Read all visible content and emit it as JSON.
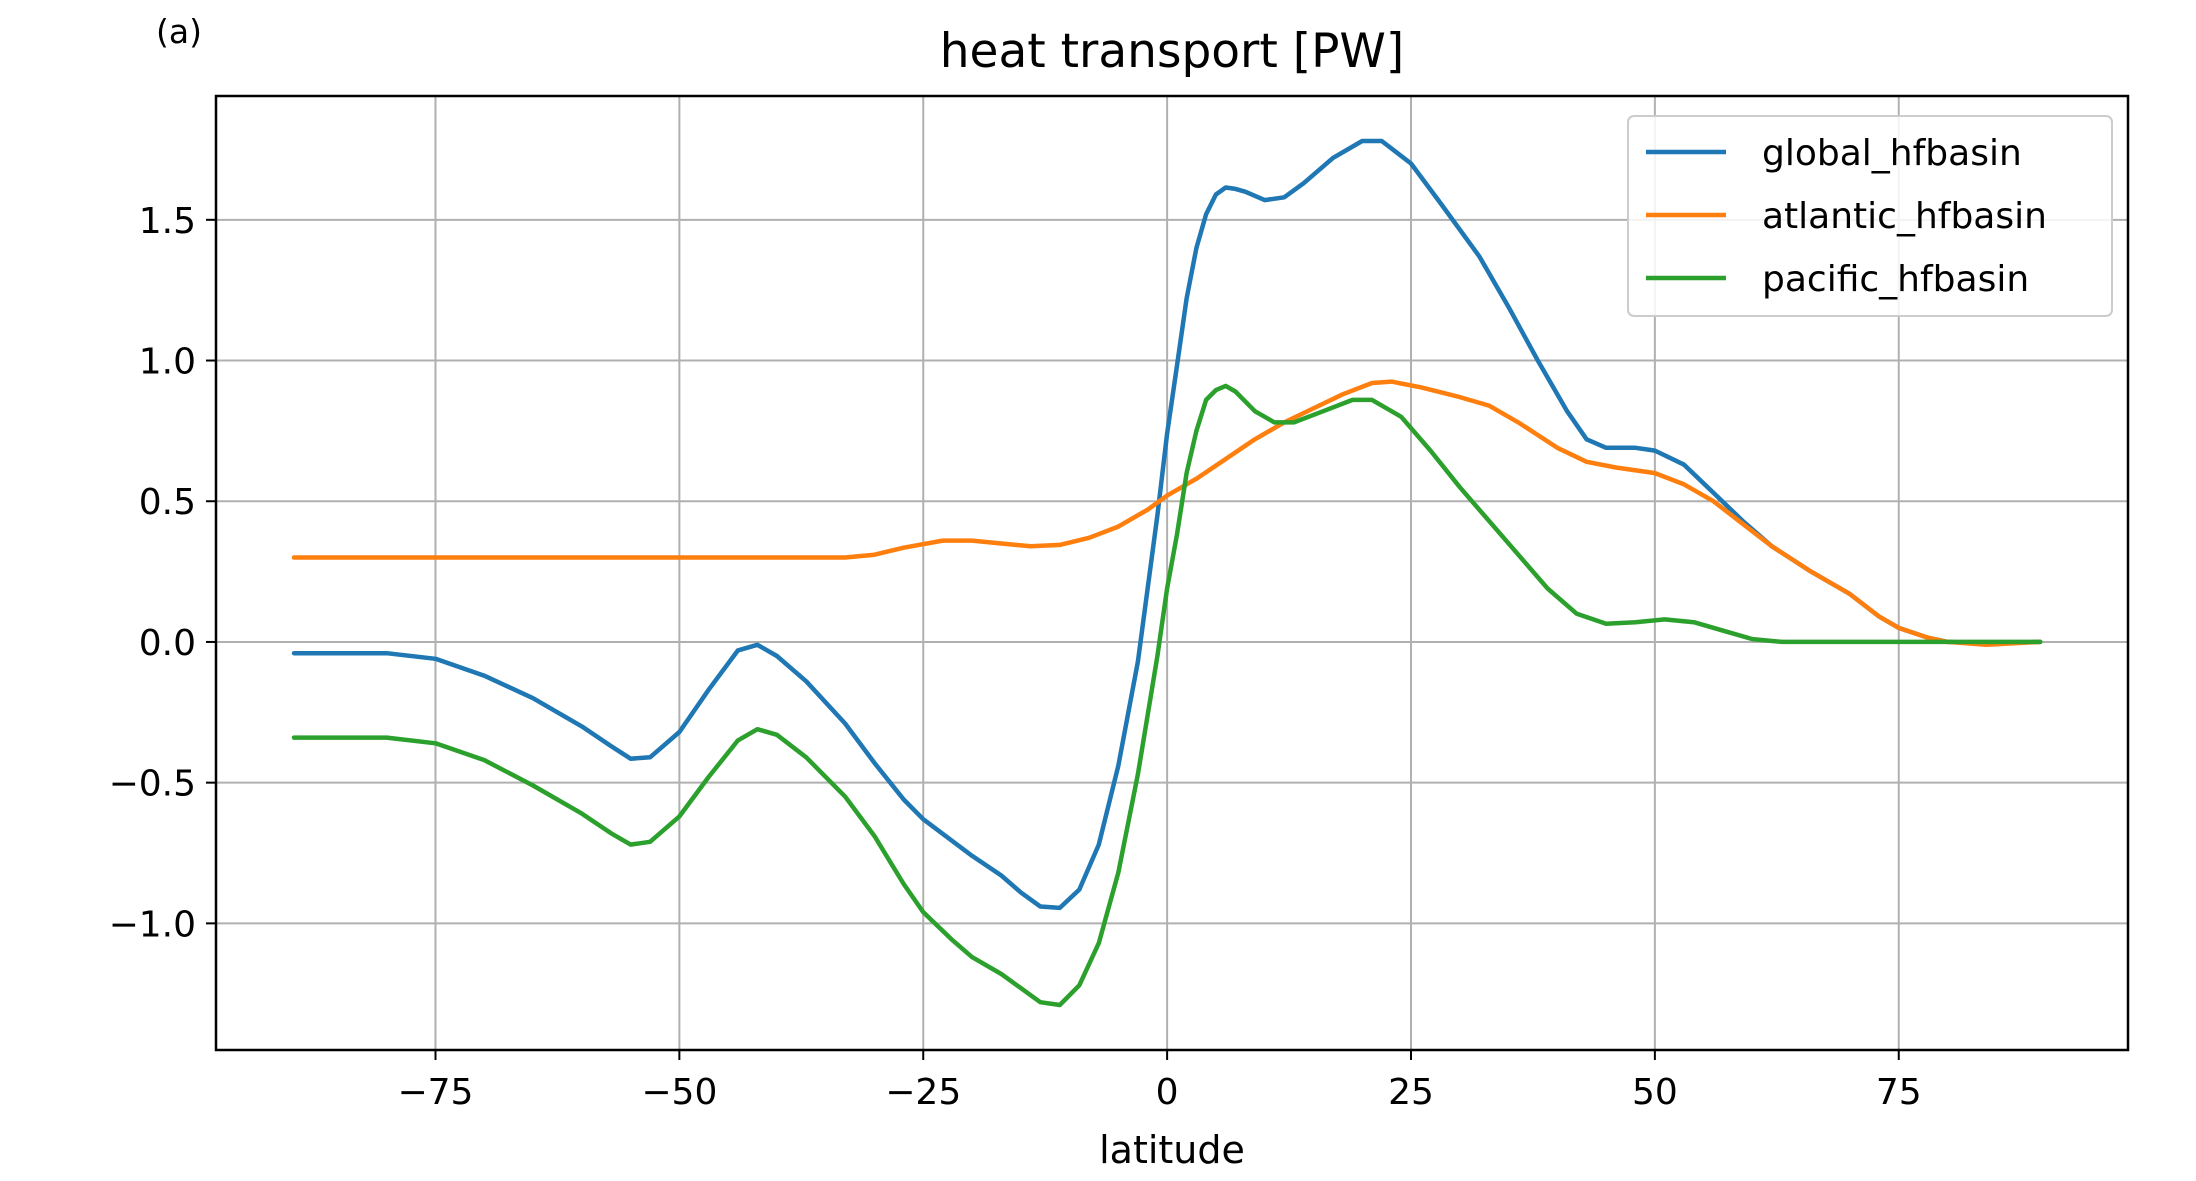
{
  "chart_data": {
    "type": "line",
    "panel_label": "(a)",
    "title": "heat transport [PW]",
    "xlabel": "latitude",
    "ylabel": "",
    "xlim": [
      -97.5,
      98.5
    ],
    "ylim": [
      -1.45,
      1.94
    ],
    "xticks": [
      -75,
      -50,
      -25,
      0,
      25,
      50,
      75
    ],
    "xtick_labels": [
      "−75",
      "−50",
      "−25",
      "0",
      "25",
      "50",
      "75"
    ],
    "yticks": [
      -1.0,
      -0.5,
      0.0,
      0.5,
      1.0,
      1.5
    ],
    "ytick_labels": [
      "−1.0",
      "−0.5",
      "0.0",
      "0.5",
      "1.0",
      "1.5"
    ],
    "grid": true,
    "legend_position": "top-right",
    "series": [
      {
        "name": "global_hfbasin",
        "color": "#1f77b4",
        "points": [
          [
            -89.5,
            -0.04
          ],
          [
            -80,
            -0.04
          ],
          [
            -75,
            -0.06
          ],
          [
            -70,
            -0.12
          ],
          [
            -65,
            -0.2
          ],
          [
            -60,
            -0.3
          ],
          [
            -57,
            -0.37
          ],
          [
            -55,
            -0.415
          ],
          [
            -53,
            -0.41
          ],
          [
            -50,
            -0.32
          ],
          [
            -47,
            -0.17
          ],
          [
            -44,
            -0.03
          ],
          [
            -42,
            -0.01
          ],
          [
            -40,
            -0.05
          ],
          [
            -37,
            -0.14
          ],
          [
            -33,
            -0.29
          ],
          [
            -30,
            -0.43
          ],
          [
            -27,
            -0.56
          ],
          [
            -25,
            -0.63
          ],
          [
            -20,
            -0.76
          ],
          [
            -17,
            -0.83
          ],
          [
            -15,
            -0.89
          ],
          [
            -13,
            -0.94
          ],
          [
            -11,
            -0.945
          ],
          [
            -9,
            -0.88
          ],
          [
            -7,
            -0.72
          ],
          [
            -5,
            -0.44
          ],
          [
            -3,
            -0.07
          ],
          [
            -1,
            0.45
          ],
          [
            0,
            0.74
          ],
          [
            1,
            0.98
          ],
          [
            2,
            1.22
          ],
          [
            3,
            1.4
          ],
          [
            4,
            1.52
          ],
          [
            5,
            1.59
          ],
          [
            6,
            1.615
          ],
          [
            7,
            1.61
          ],
          [
            8,
            1.6
          ],
          [
            10,
            1.57
          ],
          [
            12,
            1.58
          ],
          [
            14,
            1.63
          ],
          [
            17,
            1.72
          ],
          [
            20,
            1.78
          ],
          [
            22,
            1.78
          ],
          [
            25,
            1.7
          ],
          [
            28,
            1.56
          ],
          [
            32,
            1.37
          ],
          [
            35,
            1.19
          ],
          [
            38,
            1.0
          ],
          [
            41,
            0.82
          ],
          [
            43,
            0.72
          ],
          [
            45,
            0.69
          ],
          [
            48,
            0.69
          ],
          [
            50,
            0.68
          ],
          [
            53,
            0.63
          ],
          [
            56,
            0.53
          ],
          [
            59,
            0.43
          ],
          [
            62,
            0.34
          ],
          [
            66,
            0.25
          ],
          [
            70,
            0.17
          ],
          [
            73,
            0.09
          ],
          [
            75,
            0.05
          ],
          [
            78,
            0.015
          ],
          [
            80,
            0.0
          ],
          [
            84,
            -0.005
          ],
          [
            89.5,
            0.0
          ]
        ]
      },
      {
        "name": "atlantic_hfbasin",
        "color": "#ff7f0e",
        "points": [
          [
            -89.5,
            0.3
          ],
          [
            -80,
            0.3
          ],
          [
            -70,
            0.3
          ],
          [
            -60,
            0.3
          ],
          [
            -50,
            0.3
          ],
          [
            -40,
            0.3
          ],
          [
            -33,
            0.3
          ],
          [
            -30,
            0.31
          ],
          [
            -27,
            0.335
          ],
          [
            -23,
            0.36
          ],
          [
            -20,
            0.36
          ],
          [
            -17,
            0.35
          ],
          [
            -14,
            0.34
          ],
          [
            -11,
            0.345
          ],
          [
            -8,
            0.37
          ],
          [
            -5,
            0.41
          ],
          [
            -2,
            0.47
          ],
          [
            0,
            0.52
          ],
          [
            3,
            0.58
          ],
          [
            6,
            0.65
          ],
          [
            9,
            0.72
          ],
          [
            12,
            0.78
          ],
          [
            15,
            0.83
          ],
          [
            18,
            0.88
          ],
          [
            21,
            0.92
          ],
          [
            23,
            0.925
          ],
          [
            26,
            0.905
          ],
          [
            30,
            0.87
          ],
          [
            33,
            0.84
          ],
          [
            36,
            0.78
          ],
          [
            40,
            0.69
          ],
          [
            43,
            0.64
          ],
          [
            46,
            0.62
          ],
          [
            50,
            0.6
          ],
          [
            53,
            0.56
          ],
          [
            56,
            0.5
          ],
          [
            59,
            0.42
          ],
          [
            62,
            0.34
          ],
          [
            66,
            0.25
          ],
          [
            70,
            0.17
          ],
          [
            73,
            0.09
          ],
          [
            75,
            0.05
          ],
          [
            78,
            0.015
          ],
          [
            80,
            0.0
          ],
          [
            84,
            -0.01
          ],
          [
            89.5,
            0.0
          ]
        ]
      },
      {
        "name": "pacific_hfbasin",
        "color": "#2ca02c",
        "points": [
          [
            -89.5,
            -0.34
          ],
          [
            -80,
            -0.34
          ],
          [
            -75,
            -0.36
          ],
          [
            -70,
            -0.42
          ],
          [
            -65,
            -0.51
          ],
          [
            -60,
            -0.61
          ],
          [
            -57,
            -0.68
          ],
          [
            -55,
            -0.72
          ],
          [
            -53,
            -0.71
          ],
          [
            -50,
            -0.62
          ],
          [
            -47,
            -0.48
          ],
          [
            -44,
            -0.35
          ],
          [
            -42,
            -0.31
          ],
          [
            -40,
            -0.33
          ],
          [
            -37,
            -0.41
          ],
          [
            -33,
            -0.55
          ],
          [
            -30,
            -0.69
          ],
          [
            -27,
            -0.86
          ],
          [
            -25,
            -0.96
          ],
          [
            -22,
            -1.06
          ],
          [
            -20,
            -1.12
          ],
          [
            -17,
            -1.18
          ],
          [
            -15,
            -1.23
          ],
          [
            -13,
            -1.28
          ],
          [
            -11,
            -1.29
          ],
          [
            -9,
            -1.22
          ],
          [
            -7,
            -1.07
          ],
          [
            -5,
            -0.82
          ],
          [
            -3,
            -0.47
          ],
          [
            -1,
            -0.05
          ],
          [
            0,
            0.19
          ],
          [
            1,
            0.38
          ],
          [
            2,
            0.6
          ],
          [
            3,
            0.75
          ],
          [
            4,
            0.86
          ],
          [
            5,
            0.895
          ],
          [
            6,
            0.91
          ],
          [
            7,
            0.89
          ],
          [
            9,
            0.82
          ],
          [
            11,
            0.78
          ],
          [
            13,
            0.78
          ],
          [
            16,
            0.82
          ],
          [
            19,
            0.86
          ],
          [
            21,
            0.86
          ],
          [
            24,
            0.8
          ],
          [
            27,
            0.68
          ],
          [
            30,
            0.55
          ],
          [
            33,
            0.43
          ],
          [
            36,
            0.31
          ],
          [
            39,
            0.19
          ],
          [
            42,
            0.1
          ],
          [
            45,
            0.065
          ],
          [
            48,
            0.07
          ],
          [
            51,
            0.08
          ],
          [
            54,
            0.07
          ],
          [
            57,
            0.04
          ],
          [
            60,
            0.01
          ],
          [
            63,
            0.0
          ],
          [
            70,
            0.0
          ],
          [
            80,
            0.0
          ],
          [
            89.5,
            0.0
          ]
        ]
      }
    ]
  }
}
